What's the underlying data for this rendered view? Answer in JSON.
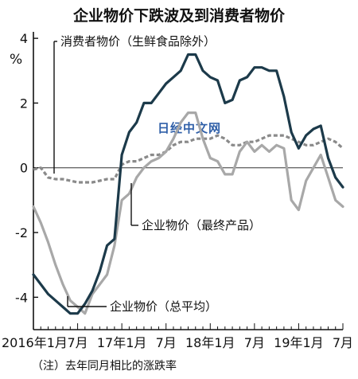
{
  "chart_data": {
    "type": "line",
    "title": "企业物价下跌波及到消费者物价",
    "y_unit": "%",
    "footnote": "（注）去年同月相比的涨跌率",
    "ylim": [
      -5,
      4.2
    ],
    "yticks": [
      4,
      2,
      0,
      -2,
      -4
    ],
    "ytick_labels": [
      "4",
      "2",
      "0",
      "-2",
      "-4"
    ],
    "x_start": "2016-01",
    "xlim_months": [
      0,
      35
    ],
    "xticks": [
      {
        "month": 0,
        "label": "2016年1月"
      },
      {
        "month": 6,
        "label": "7月"
      },
      {
        "month": 12,
        "label": "17年1月"
      },
      {
        "month": 18,
        "label": "7月"
      },
      {
        "month": 24,
        "label": "18年1月"
      },
      {
        "month": 30,
        "label": "7月"
      },
      {
        "month": 36,
        "label": "19年1月"
      },
      {
        "month": 42,
        "label": "7月"
      }
    ],
    "series": [
      {
        "name": "消费者物价（生鲜食品除外）",
        "color": "#8a8a8a",
        "style": "dashed",
        "values": [
          -0.05,
          0.0,
          -0.3,
          -0.35,
          -0.35,
          -0.4,
          -0.45,
          -0.45,
          -0.45,
          -0.4,
          -0.35,
          -0.35,
          0.1,
          0.2,
          0.2,
          0.3,
          0.4,
          0.4,
          0.5,
          0.7,
          0.8,
          0.8,
          0.9,
          0.9,
          0.9,
          1.0,
          0.9,
          0.7,
          0.7,
          0.8,
          0.8,
          0.9,
          1.0,
          1.0,
          1.0,
          0.9,
          0.8,
          0.7,
          0.7,
          0.8,
          0.9,
          0.8,
          0.6
        ]
      },
      {
        "name": "企业物价（最终产品）",
        "color": "#a8a8a8",
        "style": "solid",
        "values": [
          -1.2,
          -1.7,
          -2.3,
          -3.0,
          -3.6,
          -4.1,
          -4.3,
          -4.5,
          -3.9,
          -3.6,
          -3.3,
          -2.4,
          -1.0,
          -0.8,
          -0.3,
          0.0,
          0.2,
          0.3,
          0.5,
          0.9,
          1.4,
          1.7,
          1.7,
          0.9,
          0.3,
          0.2,
          -0.2,
          -0.2,
          0.5,
          0.8,
          0.5,
          0.7,
          0.5,
          0.7,
          0.6,
          -1.0,
          -1.3,
          -0.4,
          0.0,
          0.4,
          -0.3,
          -1.0,
          -1.2
        ]
      },
      {
        "name": "企业物价（总平均）",
        "color": "#1c3a4a",
        "style": "solid",
        "values": [
          -3.3,
          -3.6,
          -3.9,
          -4.1,
          -4.3,
          -4.5,
          -4.5,
          -4.2,
          -3.8,
          -3.2,
          -2.4,
          -2.2,
          0.4,
          1.1,
          1.4,
          2.0,
          2.0,
          2.3,
          2.6,
          2.8,
          3.0,
          3.5,
          3.5,
          3.0,
          2.8,
          2.7,
          2.0,
          2.1,
          2.7,
          2.8,
          3.1,
          3.1,
          3.0,
          3.0,
          2.2,
          1.1,
          0.6,
          1.0,
          1.2,
          1.3,
          0.3,
          -0.3,
          -0.6
        ]
      }
    ],
    "annotations": [
      {
        "text": "消费者物价（生鲜食品除外）",
        "series": 0
      },
      {
        "text": "企业物价（最终产品）",
        "series": 1
      },
      {
        "text": "企业物价（总平均）",
        "series": 2
      }
    ],
    "watermark": "日经中文网",
    "grid": false,
    "legend": "none"
  }
}
